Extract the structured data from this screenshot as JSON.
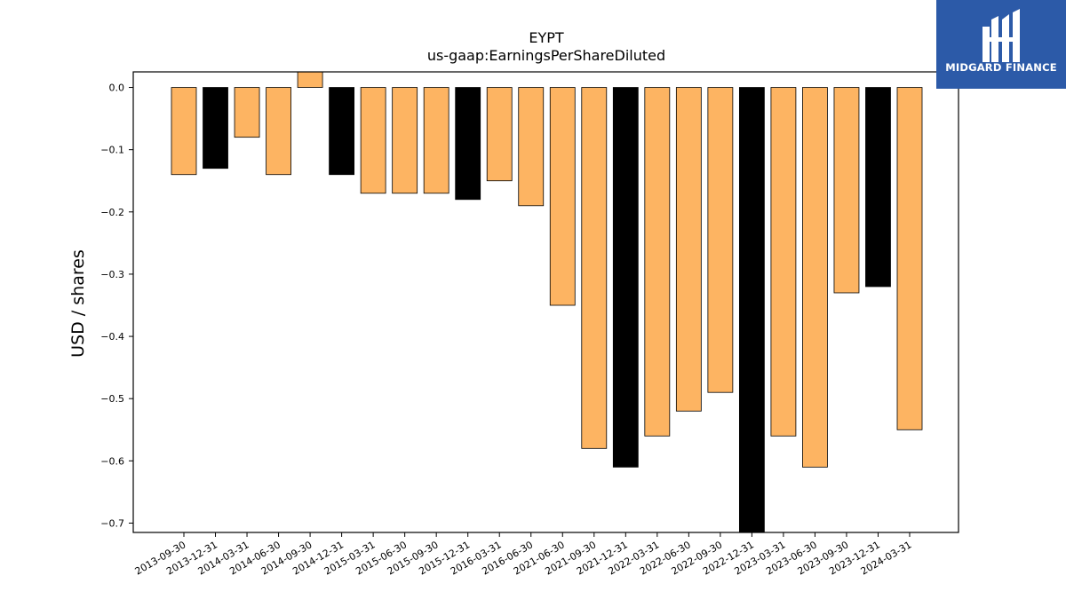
{
  "brand": {
    "name": "MIDGARD FINANCE",
    "bg_color": "#2c5aa8",
    "icon": "midgard-logo-icon"
  },
  "chart_data": {
    "type": "bar",
    "title": "EYPT",
    "subtitle": "us-gaap:EarningsPerShareDiluted",
    "xlabel": "",
    "ylabel": "USD / shares",
    "ylim": [
      -0.715,
      0.025
    ],
    "yticks": [
      0.0,
      -0.1,
      -0.2,
      -0.3,
      -0.4,
      -0.5,
      -0.6,
      -0.7
    ],
    "ytick_labels": [
      "0.0",
      "−0.1",
      "−0.2",
      "−0.3",
      "−0.4",
      "−0.5",
      "−0.6",
      "−0.7"
    ],
    "grid": false,
    "legend": false,
    "colors": {
      "default": "#fdb462",
      "q4": "#000000",
      "edge": "#000000"
    },
    "categories": [
      "2013-09-30",
      "2013-12-31",
      "2014-03-31",
      "2014-06-30",
      "2014-09-30",
      "2014-12-31",
      "2015-03-31",
      "2015-06-30",
      "2015-09-30",
      "2015-12-31",
      "2016-03-31",
      "2016-06-30",
      "2021-06-30",
      "2021-09-30",
      "2021-12-31",
      "2022-03-31",
      "2022-06-30",
      "2022-09-30",
      "2022-12-31",
      "2023-03-31",
      "2023-06-30",
      "2023-09-30",
      "2023-12-31",
      "2024-03-31"
    ],
    "values": [
      -0.14,
      -0.13,
      -0.08,
      -0.14,
      0.025,
      -0.14,
      -0.17,
      -0.17,
      -0.17,
      -0.18,
      -0.15,
      -0.19,
      -0.35,
      -0.58,
      -0.61,
      -0.56,
      -0.52,
      -0.49,
      -0.74,
      -0.56,
      -0.61,
      -0.33,
      -0.32,
      -0.55
    ],
    "highlight": [
      false,
      true,
      false,
      false,
      false,
      true,
      false,
      false,
      false,
      true,
      false,
      false,
      false,
      false,
      true,
      false,
      false,
      false,
      true,
      false,
      false,
      false,
      true,
      false
    ]
  }
}
